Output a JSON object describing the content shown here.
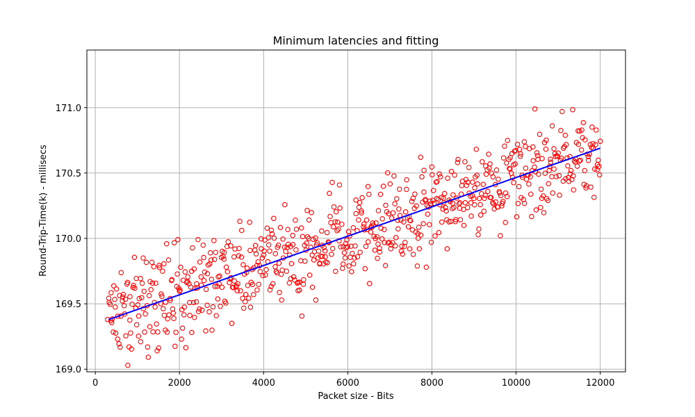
{
  "chart_data": {
    "type": "scatter",
    "title": "Minimum latencies and fitting",
    "xlabel": "Packet size - Bits",
    "ylabel": "Round-Trip-Time(k) - millisecs",
    "xlim": [
      -200,
      12600
    ],
    "ylim": [
      168.98,
      171.44
    ],
    "xticks": [
      0,
      2000,
      4000,
      6000,
      8000,
      10000,
      12000
    ],
    "xtick_labels": [
      "0",
      "2000",
      "4000",
      "6000",
      "8000",
      "10000",
      "12000"
    ],
    "yticks": [
      169.0,
      169.5,
      170.0,
      170.5,
      171.0
    ],
    "ytick_labels": [
      "169.0",
      "169.5",
      "170.0",
      "170.5",
      "171.0"
    ],
    "grid": true,
    "series": [
      {
        "marker": "open-circle",
        "color": "#ff0000",
        "x_start": 300,
        "x_end": 12000,
        "x_step": 16,
        "noise_seed": 7,
        "noise_sd": 0.17
      },
      {
        "marker": "line",
        "color": "#0000ff",
        "x": [
          320,
          12000
        ],
        "y": [
          169.38,
          170.69
        ]
      }
    ]
  }
}
